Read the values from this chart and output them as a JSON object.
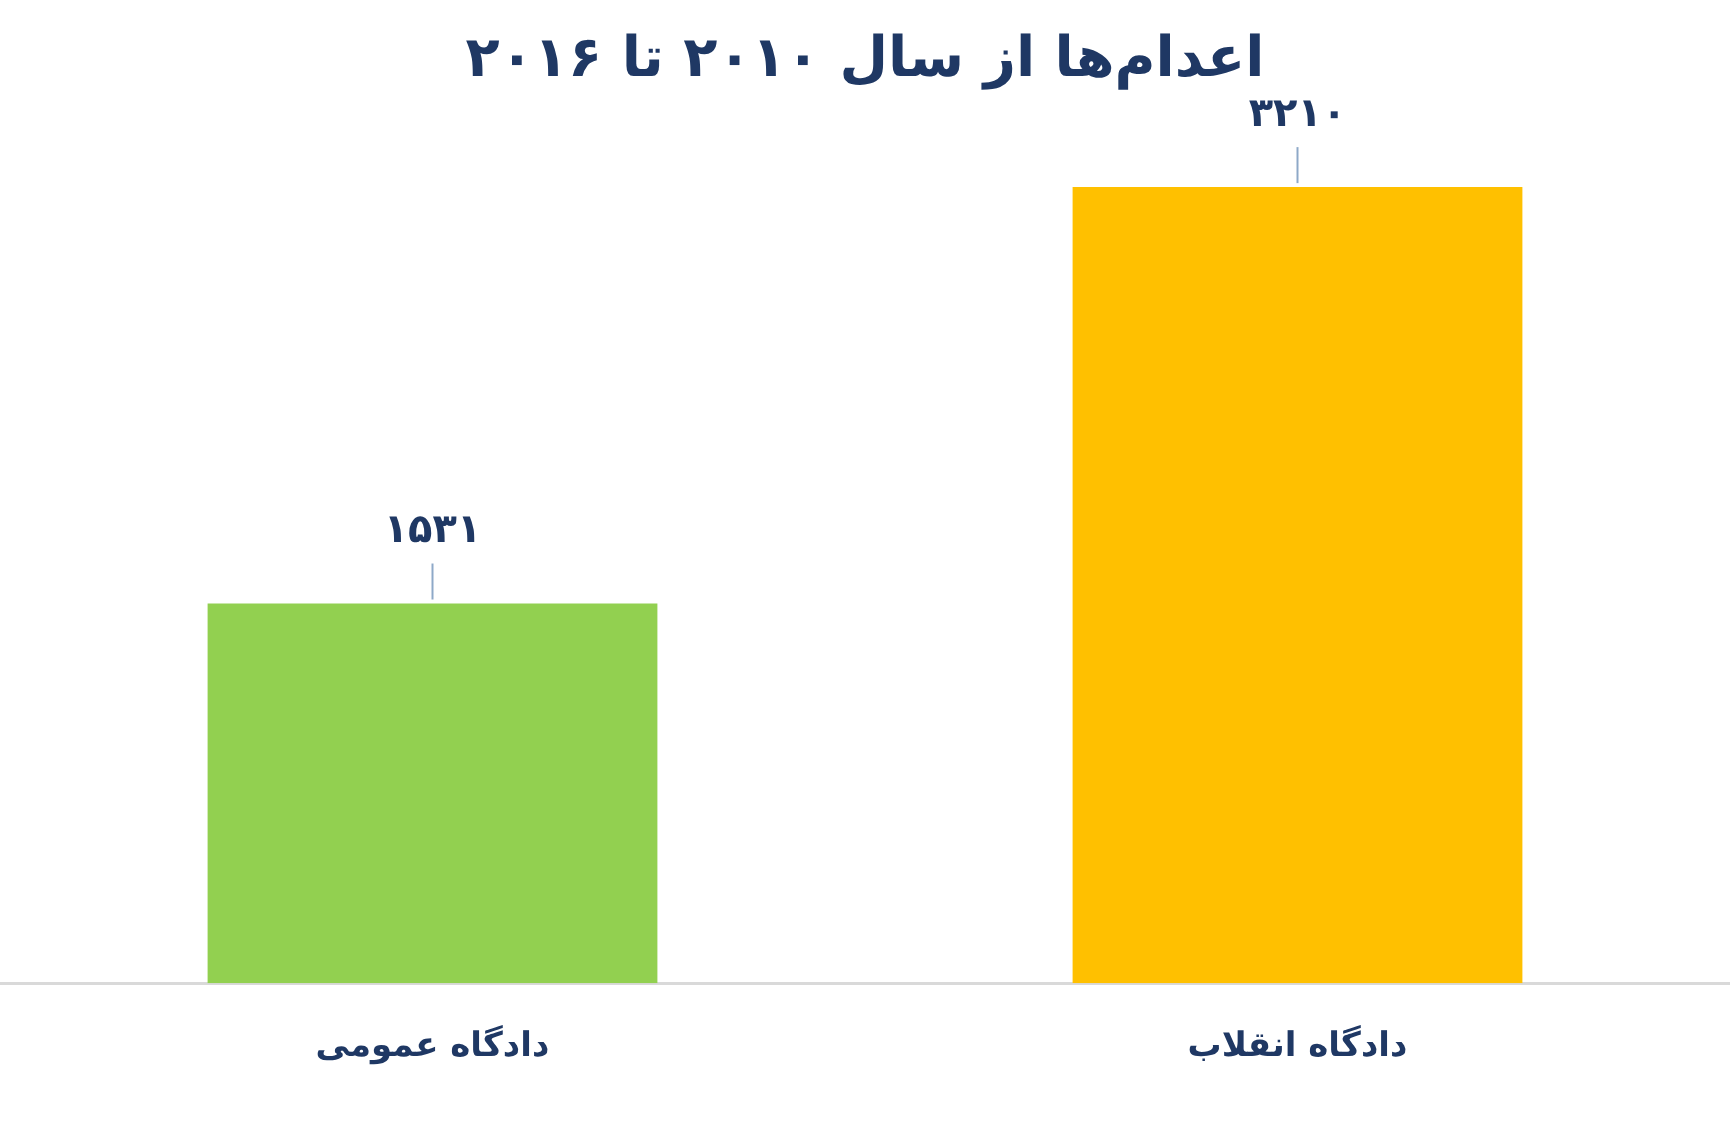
{
  "chart_data": {
    "type": "bar",
    "title": "اعدام‌ها از سال ۲۰۱۰ تا ۲۰۱۶",
    "categories": [
      "دادگاه عمومی",
      "دادگاه انقلاب"
    ],
    "values": [
      1531,
      3210
    ],
    "colors": [
      "#92d050",
      "#ffc000"
    ],
    "value_labels": [
      "۱۵۳۱",
      "۳۲۱۰"
    ]
  }
}
